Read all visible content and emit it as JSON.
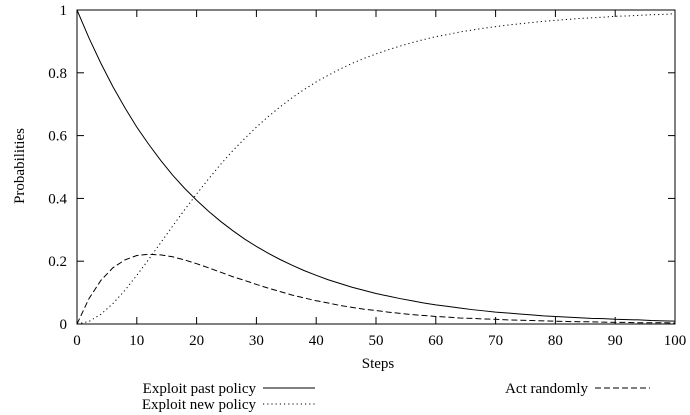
{
  "chart_data": {
    "type": "line",
    "title": "",
    "xlabel": "Steps",
    "ylabel": "Probabilities",
    "xlim": [
      0,
      100
    ],
    "ylim": [
      0,
      1
    ],
    "xticks": [
      0,
      10,
      20,
      30,
      40,
      50,
      60,
      70,
      80,
      90,
      100
    ],
    "yticks": [
      0,
      0.2,
      0.4,
      0.6,
      0.8,
      1
    ],
    "ytick_labels": [
      "0",
      "0.2",
      "0.4",
      "0.6",
      "0.8",
      "1"
    ],
    "grid": false,
    "legend_position": "bottom",
    "x": [
      0,
      2,
      4,
      6,
      8,
      10,
      12,
      14,
      16,
      18,
      20,
      22,
      24,
      26,
      28,
      30,
      32,
      34,
      36,
      38,
      40,
      42,
      44,
      46,
      48,
      50,
      52,
      54,
      56,
      58,
      60,
      62,
      64,
      66,
      68,
      70,
      72,
      74,
      76,
      78,
      80,
      82,
      84,
      86,
      88,
      90,
      92,
      94,
      96,
      98,
      100
    ],
    "series": [
      {
        "name": "Exploit past policy",
        "style": "solid",
        "values": [
          1.0,
          0.911,
          0.83,
          0.756,
          0.689,
          0.627,
          0.572,
          0.521,
          0.474,
          0.432,
          0.394,
          0.359,
          0.327,
          0.298,
          0.271,
          0.247,
          0.225,
          0.205,
          0.187,
          0.17,
          0.155,
          0.141,
          0.129,
          0.117,
          0.107,
          0.097,
          0.089,
          0.081,
          0.074,
          0.067,
          0.061,
          0.056,
          0.051,
          0.046,
          0.042,
          0.038,
          0.035,
          0.032,
          0.029,
          0.026,
          0.024,
          0.022,
          0.02,
          0.018,
          0.017,
          0.015,
          0.014,
          0.013,
          0.011,
          0.01,
          0.009
        ]
      },
      {
        "name": "Exploit new policy",
        "style": "dotted",
        "values": [
          0.0,
          0.008,
          0.031,
          0.065,
          0.107,
          0.155,
          0.206,
          0.259,
          0.312,
          0.364,
          0.414,
          0.462,
          0.508,
          0.551,
          0.59,
          0.627,
          0.661,
          0.692,
          0.721,
          0.747,
          0.771,
          0.792,
          0.812,
          0.83,
          0.846,
          0.86,
          0.873,
          0.885,
          0.896,
          0.906,
          0.915,
          0.922,
          0.93,
          0.936,
          0.942,
          0.947,
          0.952,
          0.956,
          0.96,
          0.964,
          0.967,
          0.97,
          0.973,
          0.975,
          0.977,
          0.98,
          0.981,
          0.983,
          0.985,
          0.986,
          0.988
        ]
      },
      {
        "name": "Act randomly",
        "style": "dashed",
        "values": [
          0.0,
          0.081,
          0.139,
          0.179,
          0.204,
          0.218,
          0.222,
          0.22,
          0.214,
          0.204,
          0.192,
          0.179,
          0.165,
          0.151,
          0.139,
          0.126,
          0.114,
          0.103,
          0.092,
          0.083,
          0.074,
          0.067,
          0.059,
          0.053,
          0.047,
          0.043,
          0.038,
          0.034,
          0.03,
          0.027,
          0.024,
          0.022,
          0.019,
          0.018,
          0.016,
          0.015,
          0.013,
          0.012,
          0.011,
          0.01,
          0.009,
          0.008,
          0.007,
          0.007,
          0.006,
          0.005,
          0.005,
          0.004,
          0.004,
          0.004,
          0.003
        ]
      }
    ]
  }
}
